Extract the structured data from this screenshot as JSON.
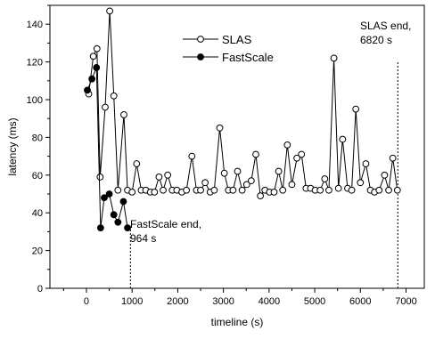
{
  "chart_data": {
    "type": "line",
    "xlabel": "timeline (s)",
    "ylabel": "latency (ms)",
    "xlim": [
      -800,
      7400
    ],
    "ylim": [
      0,
      150
    ],
    "xticks": [
      0,
      1000,
      2000,
      3000,
      4000,
      5000,
      6000,
      7000
    ],
    "yticks": [
      0,
      20,
      40,
      60,
      80,
      100,
      120,
      140
    ],
    "grid": false,
    "legend_position": "top-center",
    "series": [
      {
        "name": "SLAS",
        "marker": "open-circle",
        "color": "#000000",
        "points": [
          [
            50,
            103
          ],
          [
            150,
            123
          ],
          [
            230,
            127
          ],
          [
            300,
            59
          ],
          [
            410,
            96
          ],
          [
            510,
            147
          ],
          [
            600,
            102
          ],
          [
            690,
            52
          ],
          [
            820,
            92
          ],
          [
            900,
            52
          ],
          [
            1000,
            51
          ],
          [
            1100,
            66
          ],
          [
            1200,
            52
          ],
          [
            1300,
            52
          ],
          [
            1400,
            51
          ],
          [
            1490,
            51
          ],
          [
            1590,
            59
          ],
          [
            1680,
            52
          ],
          [
            1780,
            60
          ],
          [
            1880,
            52
          ],
          [
            1980,
            52
          ],
          [
            2090,
            51
          ],
          [
            2190,
            52
          ],
          [
            2310,
            70
          ],
          [
            2410,
            52
          ],
          [
            2500,
            52
          ],
          [
            2600,
            56
          ],
          [
            2710,
            51
          ],
          [
            2800,
            52
          ],
          [
            2920,
            85
          ],
          [
            3020,
            61
          ],
          [
            3110,
            52
          ],
          [
            3210,
            52
          ],
          [
            3310,
            62
          ],
          [
            3410,
            52
          ],
          [
            3510,
            55
          ],
          [
            3610,
            57
          ],
          [
            3710,
            71
          ],
          [
            3810,
            49
          ],
          [
            3910,
            52
          ],
          [
            4010,
            51
          ],
          [
            4110,
            51
          ],
          [
            4210,
            62
          ],
          [
            4300,
            52
          ],
          [
            4400,
            76
          ],
          [
            4500,
            55
          ],
          [
            4610,
            69
          ],
          [
            4710,
            71
          ],
          [
            4810,
            53
          ],
          [
            4910,
            53
          ],
          [
            5010,
            52
          ],
          [
            5120,
            52
          ],
          [
            5220,
            58
          ],
          [
            5310,
            52
          ],
          [
            5420,
            122
          ],
          [
            5520,
            53
          ],
          [
            5610,
            79
          ],
          [
            5720,
            53
          ],
          [
            5810,
            52
          ],
          [
            5900,
            95
          ],
          [
            6000,
            56
          ],
          [
            6120,
            66
          ],
          [
            6220,
            52
          ],
          [
            6310,
            51
          ],
          [
            6410,
            52
          ],
          [
            6530,
            60
          ],
          [
            6620,
            52
          ],
          [
            6710,
            69
          ],
          [
            6810,
            52
          ]
        ]
      },
      {
        "name": "FastScale",
        "marker": "filled-circle",
        "color": "#000000",
        "points": [
          [
            20,
            105
          ],
          [
            120,
            111
          ],
          [
            220,
            117
          ],
          [
            310,
            32
          ],
          [
            390,
            48
          ],
          [
            500,
            50
          ],
          [
            600,
            39
          ],
          [
            690,
            35
          ],
          [
            810,
            46
          ],
          [
            900,
            32
          ]
        ]
      }
    ],
    "annotations": [
      {
        "lines": [
          "FastScale end,",
          "964 s"
        ],
        "x": 964
      },
      {
        "lines": [
          "SLAS end,",
          "6820 s"
        ],
        "x": 6820
      }
    ]
  }
}
